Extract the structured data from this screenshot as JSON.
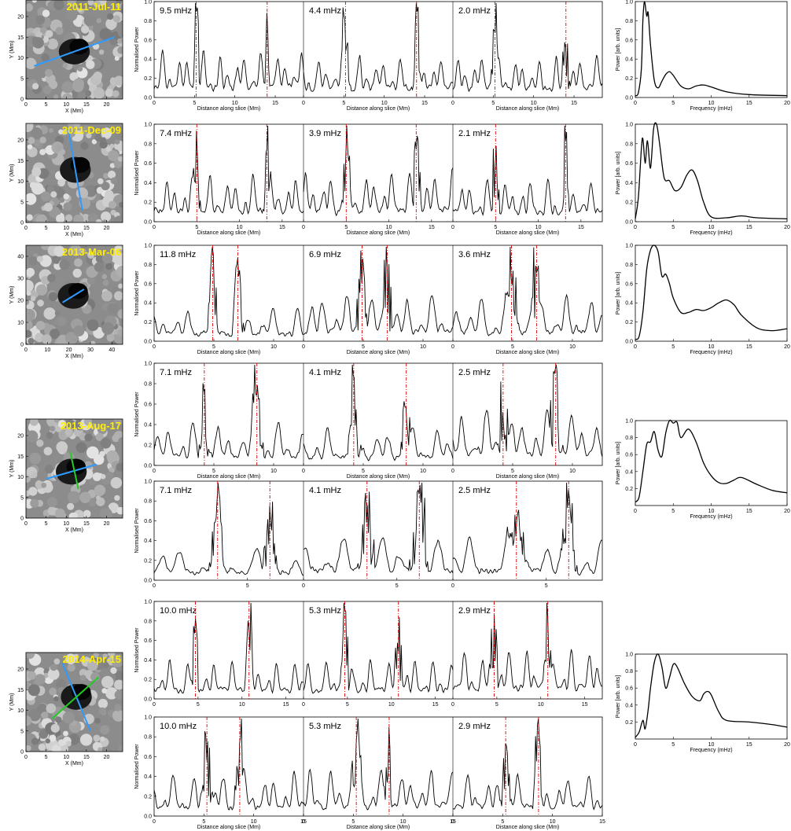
{
  "labels": {
    "x_mm": "X (Mm)",
    "y_mm": "Y (Mm)",
    "normalised_power": "Normalised Power",
    "distance": "Distance along slice (Mm)",
    "power_arb": "Power [arb. units]",
    "frequency": "Frequency (mHz)"
  },
  "colors": {
    "date_label": "#ffee00",
    "slice_blue": "#2f9bff",
    "slice_green": "#22cc22",
    "boundary_red": "#dd0000",
    "trace": "#000000"
  },
  "chart_data": [
    {
      "type": "image",
      "panel": "context-image",
      "date": "2011-Jul-11",
      "xlabel": "X (Mm)",
      "ylabel": "Y (Mm)",
      "xlim": [
        0,
        24
      ],
      "ylim": [
        0,
        24
      ],
      "xticks": [
        0,
        5,
        10,
        15,
        20
      ],
      "yticks": [
        0,
        5,
        10,
        15,
        20
      ],
      "slices": [
        {
          "color": "blue",
          "start": [
            2,
            8
          ],
          "end": [
            22,
            15
          ]
        }
      ]
    },
    {
      "type": "line",
      "panel": "slice-profile",
      "row": 1,
      "annotations": [
        "9.5 mHz",
        "4.4 mHz",
        "2.0 mHz"
      ],
      "ylabel": "Normalised Power",
      "xlabel": "Distance along slice (Mm)",
      "xlim": [
        0,
        18.5
      ],
      "ylim": [
        0,
        1.0
      ],
      "xticks": [
        0,
        5,
        10,
        15
      ],
      "yticks": [
        "0.0",
        "0.2",
        "0.4",
        "0.6",
        "0.8",
        "1.0"
      ],
      "boundaries": [
        5.2,
        14.0
      ]
    },
    {
      "type": "line",
      "panel": "power-spectrum",
      "row": 1,
      "ylabel": "Power [arb. units]",
      "xlabel": "Frequency (mHz)",
      "xlim": [
        0,
        20
      ],
      "ylim": [
        0,
        1.0
      ],
      "xticks": [
        0,
        5,
        10,
        15,
        20
      ],
      "yticks": [
        "0.0",
        "0.2",
        "0.4",
        "0.6",
        "0.8",
        "1.0"
      ],
      "x": [
        0,
        0.4,
        0.8,
        1.0,
        1.2,
        1.5,
        1.7,
        2.0,
        2.5,
        3.0,
        3.5,
        4.0,
        4.5,
        5.0,
        6.0,
        7.0,
        8.0,
        9.0,
        10.0,
        12.0,
        15.0,
        20.0
      ],
      "y": [
        0.02,
        0.05,
        0.3,
        0.8,
        1.0,
        0.85,
        0.88,
        0.55,
        0.18,
        0.1,
        0.17,
        0.24,
        0.27,
        0.23,
        0.12,
        0.09,
        0.12,
        0.13,
        0.11,
        0.06,
        0.03,
        0.02
      ]
    },
    {
      "type": "image",
      "panel": "context-image",
      "date": "2011-Dec-09",
      "xlabel": "X (Mm)",
      "ylabel": "Y (Mm)",
      "xlim": [
        0,
        24
      ],
      "ylim": [
        0,
        24
      ],
      "xticks": [
        0,
        5,
        10,
        15,
        20
      ],
      "yticks": [
        0,
        5,
        10,
        15,
        20
      ],
      "slices": [
        {
          "color": "blue",
          "start": [
            10.5,
            22.5
          ],
          "end": [
            14,
            3
          ]
        }
      ]
    },
    {
      "type": "line",
      "panel": "slice-profile",
      "row": 2,
      "annotations": [
        "7.4 mHz",
        "3.9 mHz",
        "2.1 mHz"
      ],
      "ylabel": "Normalised Power",
      "xlabel": "Distance along slice (Mm)",
      "xlim": [
        0,
        17.5
      ],
      "ylim": [
        0,
        1.0
      ],
      "xticks": [
        0,
        5,
        10,
        15
      ],
      "yticks": [
        "0.0",
        "0.2",
        "0.4",
        "0.6",
        "0.8",
        "1.0"
      ],
      "boundaries": [
        5.0,
        13.2
      ]
    },
    {
      "type": "line",
      "panel": "power-spectrum",
      "row": 2,
      "ylabel": "Power [arb. units]",
      "xlabel": "Frequency (mHz)",
      "xlim": [
        0,
        20
      ],
      "ylim": [
        0,
        1.0
      ],
      "xticks": [
        0,
        5,
        10,
        15,
        20
      ],
      "yticks": [
        "0.0",
        "0.2",
        "0.4",
        "0.6",
        "0.8",
        "1.0"
      ],
      "x": [
        0,
        0.4,
        0.8,
        1.0,
        1.3,
        1.6,
        2.0,
        2.4,
        2.8,
        3.2,
        3.8,
        4.5,
        5.2,
        6.0,
        6.8,
        7.5,
        8.2,
        9.0,
        10.0,
        12.0,
        14.0,
        16.0,
        20.0
      ],
      "y": [
        0.03,
        0.25,
        0.75,
        0.85,
        0.6,
        0.83,
        0.55,
        0.95,
        1.0,
        0.8,
        0.45,
        0.42,
        0.32,
        0.35,
        0.48,
        0.53,
        0.42,
        0.2,
        0.05,
        0.04,
        0.06,
        0.04,
        0.03
      ]
    },
    {
      "type": "image",
      "panel": "context-image",
      "date": "2013-Mar-06",
      "xlabel": "X (Mm)",
      "ylabel": "Y (Mm)",
      "xlim": [
        0,
        45
      ],
      "ylim": [
        0,
        45
      ],
      "xticks": [
        0,
        10,
        20,
        30,
        40
      ],
      "yticks": [
        0,
        10,
        20,
        30,
        40
      ],
      "slices": [
        {
          "color": "blue",
          "start": [
            17,
            19
          ],
          "end": [
            27,
            25
          ]
        }
      ]
    },
    {
      "type": "line",
      "panel": "slice-profile",
      "row": 3,
      "annotations": [
        "11.8 mHz",
        "6.9 mHz",
        "3.6 mHz"
      ],
      "ylabel": "Normalised Power",
      "xlabel": "Distance along slice (Mm)",
      "xlim": [
        0,
        12.5
      ],
      "ylim": [
        0,
        1.0
      ],
      "xticks": [
        0,
        5,
        10
      ],
      "yticks": [
        "0.0",
        "0.2",
        "0.4",
        "0.6",
        "0.8",
        "1.0"
      ],
      "boundaries": [
        4.9,
        7.0
      ]
    },
    {
      "type": "line",
      "panel": "power-spectrum",
      "row": 3,
      "ylabel": "Power [arb. units]",
      "xlabel": "Frequency (mHz)",
      "xlim": [
        0,
        20
      ],
      "ylim": [
        0,
        1.0
      ],
      "xticks": [
        0,
        5,
        10,
        15,
        20
      ],
      "yticks": [
        "0.0",
        "0.2",
        "0.4",
        "0.6",
        "0.8",
        "1.0"
      ],
      "x": [
        0,
        0.5,
        1.0,
        1.5,
        2.0,
        2.5,
        3.0,
        3.5,
        4.0,
        4.5,
        5.0,
        6.0,
        7.0,
        8.0,
        9.0,
        10.0,
        11.0,
        12.0,
        13.0,
        14.0,
        16.0,
        18.0,
        20.0
      ],
      "y": [
        0.02,
        0.05,
        0.3,
        0.75,
        0.95,
        1.0,
        0.93,
        0.68,
        0.7,
        0.6,
        0.45,
        0.3,
        0.3,
        0.33,
        0.32,
        0.35,
        0.4,
        0.43,
        0.38,
        0.27,
        0.14,
        0.11,
        0.13
      ]
    },
    {
      "type": "image",
      "panel": "context-image",
      "date": "2013-Aug-17",
      "xlabel": "X (Mm)",
      "ylabel": "Y (Mm)",
      "xlim": [
        0,
        24
      ],
      "ylim": [
        0,
        24
      ],
      "xticks": [
        0,
        5,
        10,
        15,
        20
      ],
      "yticks": [
        0,
        5,
        10,
        15,
        20
      ],
      "slices": [
        {
          "color": "blue",
          "start": [
            5,
            9.5
          ],
          "end": [
            17.5,
            13
          ]
        },
        {
          "color": "green",
          "start": [
            11,
            16
          ],
          "end": [
            13,
            7
          ]
        }
      ]
    },
    {
      "type": "line",
      "panel": "slice-profile",
      "row": 4,
      "annotations": [
        "7.1 mHz",
        "4.1 mHz",
        "2.5 mHz"
      ],
      "ylabel": "Normalised Power",
      "xlabel": "Distance along slice (Mm)",
      "xlim": [
        0,
        12.5
      ],
      "ylim": [
        0,
        1.0
      ],
      "xticks": [
        0,
        5,
        10
      ],
      "yticks": [
        "0.0",
        "0.2",
        "0.4",
        "0.6",
        "0.8",
        "1.0"
      ],
      "boundaries": [
        4.2,
        8.6
      ]
    },
    {
      "type": "line",
      "panel": "slice-profile",
      "row": 5,
      "annotations": [
        "7.1 mHz",
        "4.1 mHz",
        "2.5 mHz"
      ],
      "ylabel": "Normalised Power",
      "xlim": [
        0,
        8.0
      ],
      "ylim": [
        0,
        1.0
      ],
      "xticks": [
        0,
        5
      ],
      "yticks": [
        "0.0",
        "0.2",
        "0.4",
        "0.6",
        "0.8",
        "1.0"
      ],
      "boundaries": [
        3.4,
        6.2
      ]
    },
    {
      "type": "line",
      "panel": "power-spectrum",
      "row": 4,
      "ylabel": "Power [arb. units]",
      "xlabel": "Frequency (mHz)",
      "xlim": [
        0,
        20
      ],
      "ylim": [
        0,
        1.0
      ],
      "xticks": [
        0,
        5,
        10,
        15,
        20
      ],
      "yticks": [
        "0.2",
        "0.4",
        "0.6",
        "0.8",
        "1.0"
      ],
      "x": [
        0,
        0.5,
        1.0,
        1.5,
        2.0,
        2.5,
        3.0,
        3.5,
        4.0,
        4.5,
        5.0,
        5.5,
        6.0,
        7.0,
        8.0,
        9.0,
        10.0,
        11.0,
        12.0,
        13.0,
        14.0,
        16.0,
        18.0,
        20.0
      ],
      "y": [
        0.04,
        0.1,
        0.4,
        0.72,
        0.75,
        0.87,
        0.65,
        0.58,
        0.85,
        1.0,
        0.97,
        0.98,
        0.8,
        0.9,
        0.75,
        0.5,
        0.35,
        0.27,
        0.26,
        0.3,
        0.33,
        0.25,
        0.18,
        0.15
      ]
    },
    {
      "type": "image",
      "panel": "context-image",
      "date": "2014-Apr-15",
      "xlabel": "X (Mm)",
      "ylabel": "Y (Mm)",
      "xlim": [
        0,
        24
      ],
      "ylim": [
        0,
        24
      ],
      "xticks": [
        0,
        5,
        10,
        15,
        20
      ],
      "yticks": [
        0,
        5,
        10,
        15,
        20
      ],
      "slices": [
        {
          "color": "blue",
          "start": [
            9,
            21.5
          ],
          "end": [
            16,
            5
          ]
        },
        {
          "color": "green",
          "start": [
            6.5,
            8
          ],
          "end": [
            18,
            18
          ]
        }
      ]
    },
    {
      "type": "line",
      "panel": "slice-profile",
      "row": 6,
      "annotations": [
        "10.0 mHz",
        "5.3 mHz",
        "2.9 mHz"
      ],
      "ylabel": "Normalised Power",
      "xlim": [
        0,
        17.0
      ],
      "ylim": [
        0,
        1.0
      ],
      "xticks": [
        0,
        5,
        10,
        15
      ],
      "yticks": [
        "0.0",
        "0.2",
        "0.4",
        "0.6",
        "0.8",
        "1.0"
      ],
      "boundaries": [
        4.7,
        10.8
      ]
    },
    {
      "type": "line",
      "panel": "slice-profile",
      "row": 7,
      "annotations": [
        "10.0 mHz",
        "5.3 mHz",
        "2.9 mHz"
      ],
      "ylabel": "Normalised Power",
      "xlabel": "Distance along slice (Mm)",
      "xlim": [
        0,
        15.0
      ],
      "ylim": [
        0,
        1.0
      ],
      "xticks": [
        0,
        5,
        10,
        15
      ],
      "yticks": [
        "0.0",
        "0.2",
        "0.4",
        "0.6",
        "0.8",
        "1.0"
      ],
      "boundaries": [
        5.3,
        8.6
      ]
    },
    {
      "type": "line",
      "panel": "power-spectrum",
      "row": 5,
      "ylabel": "Power [arb. units]",
      "xlabel": "Frequency (mHz)",
      "xlim": [
        0,
        20
      ],
      "ylim": [
        0,
        1.0
      ],
      "xticks": [
        0,
        5,
        10,
        15,
        20
      ],
      "yticks": [
        "0.2",
        "0.4",
        "0.6",
        "0.8",
        "1.0"
      ],
      "x": [
        0,
        0.5,
        1.0,
        1.3,
        1.7,
        2.0,
        2.5,
        3.0,
        3.5,
        4.0,
        4.5,
        5.0,
        5.5,
        6.5,
        7.5,
        8.5,
        9.0,
        9.5,
        10.0,
        11.0,
        12.0,
        15.0,
        18.0,
        20.0
      ],
      "y": [
        0.02,
        0.08,
        0.22,
        0.12,
        0.35,
        0.6,
        0.9,
        1.0,
        0.85,
        0.6,
        0.72,
        0.88,
        0.85,
        0.65,
        0.5,
        0.45,
        0.53,
        0.56,
        0.52,
        0.32,
        0.22,
        0.2,
        0.17,
        0.14
      ]
    }
  ]
}
